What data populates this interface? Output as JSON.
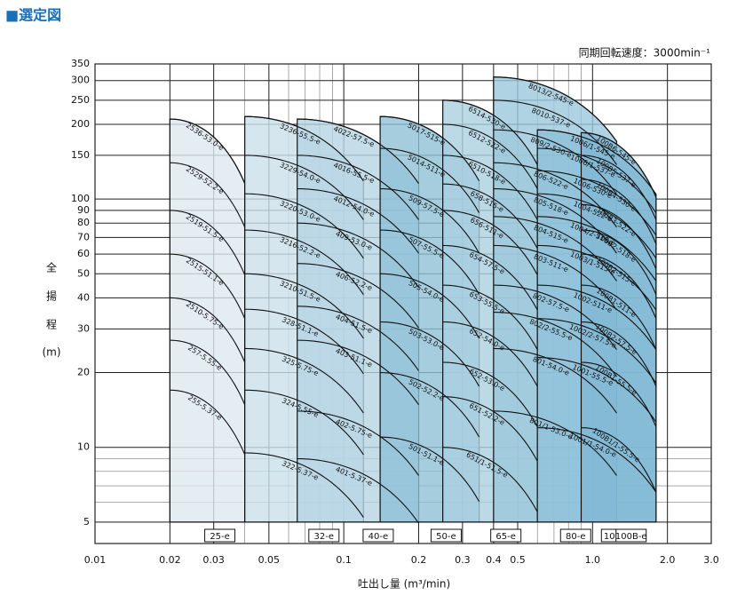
{
  "chart_data": {
    "type": "selection",
    "title": "■選定図",
    "subtitle": "同期回転速度：3000min⁻¹",
    "y_label": [
      "全",
      "揚",
      "程"
    ],
    "y_unit": "(m)",
    "x_label": "吐出し量 (m³/min)",
    "xscale": "log",
    "yscale": "log",
    "grid": true,
    "xlim": [
      0.01,
      3.0
    ],
    "ylim": [
      4.1,
      350
    ],
    "xticks": [
      0.01,
      0.02,
      0.03,
      0.05,
      0.1,
      0.2,
      0.3,
      0.4,
      0.5,
      {
        "value": 1,
        "label": "1.0"
      },
      {
        "value": 2,
        "label": "2.0"
      },
      {
        "value": 3,
        "label": "3.0"
      }
    ],
    "yticks": [
      5,
      10,
      20,
      30,
      40,
      50,
      60,
      70,
      80,
      90,
      100,
      150,
      200,
      250,
      300,
      350
    ],
    "groups": [
      {
        "name": "25-e",
        "x": [
          0.02,
          0.04
        ],
        "color": "#dde9ef",
        "models": [
          {
            "label": "2536-53.0-e",
            "head": 210
          },
          {
            "label": "2529-52.2-e",
            "head": 140
          },
          {
            "label": "2519-51.5-e",
            "head": 90
          },
          {
            "label": "2515-51.1-e",
            "head": 60
          },
          {
            "label": "2510-5.75-e",
            "head": 40
          },
          {
            "label": "257-5.55-e",
            "head": 27
          },
          {
            "label": "255-5.37-e",
            "head": 17
          }
        ]
      },
      {
        "name": "32-e",
        "x": [
          0.04,
          0.12
        ],
        "color": "#cbe0ea",
        "models": [
          {
            "label": "3236-55.5-e",
            "head": 215
          },
          {
            "label": "3229-54.0-e",
            "head": 150
          },
          {
            "label": "3220-53.0-e",
            "head": 105
          },
          {
            "label": "3216-52.2-e",
            "head": 75
          },
          {
            "label": "3210-51.5-e",
            "head": 50
          },
          {
            "label": "328-51.1-e",
            "head": 36
          },
          {
            "label": "325-5.75-e",
            "head": 25
          },
          {
            "label": "324-5.55-e",
            "head": 17
          },
          {
            "label": "322-5.37-e",
            "head": 9.5
          }
        ]
      },
      {
        "name": "40-e",
        "x": [
          0.065,
          0.2
        ],
        "color": "#b5d5e3",
        "models": [
          {
            "label": "4022-57.5-e",
            "head": 210
          },
          {
            "label": "4016-55.5-e",
            "head": 150
          },
          {
            "label": "4012-54.0-e",
            "head": 110
          },
          {
            "label": "409-53.0-e",
            "head": 80
          },
          {
            "label": "406-52.2-e",
            "head": 55
          },
          {
            "label": "404-51.5-e",
            "head": 37
          },
          {
            "label": "403-51.1-e",
            "head": 27
          },
          {
            "label": "402-5.75-e",
            "head": 14
          },
          {
            "label": "401-5.37-e",
            "head": 9
          }
        ]
      },
      {
        "name": "50-e",
        "x": [
          0.14,
          0.35
        ],
        "color": "#8fc1d6",
        "models": [
          {
            "label": "5017-515-e",
            "head": 215
          },
          {
            "label": "5014-511-e",
            "head": 160
          },
          {
            "label": "509-57.5-e",
            "head": 110
          },
          {
            "label": "507-55.5-e",
            "head": 75
          },
          {
            "label": "505-54.0-e",
            "head": 50
          },
          {
            "label": "503-53.0-e",
            "head": 32
          },
          {
            "label": "502-52.2-e",
            "head": 20
          },
          {
            "label": "501-51.1-e",
            "head": 11
          }
        ]
      },
      {
        "name": "65-e",
        "x": [
          0.25,
          0.6
        ],
        "color": "#abd0e0",
        "models": [
          {
            "label": "6514-530-e",
            "head": 250
          },
          {
            "label": "6512-522-e",
            "head": 200
          },
          {
            "label": "6510-518-e",
            "head": 150
          },
          {
            "label": "658-515-e",
            "head": 115
          },
          {
            "label": "656-511-e",
            "head": 90
          },
          {
            "label": "654-57.5-e",
            "head": 65
          },
          {
            "label": "653-55.5-e",
            "head": 45
          },
          {
            "label": "652-54.0-e",
            "head": 32
          },
          {
            "label": "652-53.0-e",
            "head": 22
          },
          {
            "label": "651-52.2-e",
            "head": 16
          },
          {
            "label": "651/1-51.5-e",
            "head": 10
          }
        ]
      },
      {
        "name": "80-e",
        "x": [
          0.4,
          1.25
        ],
        "color": "#9bc8dc",
        "models": [
          {
            "label": "8013/2-545-e",
            "head": 310
          },
          {
            "label": "8010-537-e",
            "head": 250
          },
          {
            "label": "809/2-530-e",
            "head": 190
          },
          {
            "label": "806-522-e",
            "head": 140
          },
          {
            "label": "805-518-e",
            "head": 110
          },
          {
            "label": "804-515-e",
            "head": 85
          },
          {
            "label": "803-511-e",
            "head": 65
          },
          {
            "label": "802-57.5-e",
            "head": 45
          },
          {
            "label": "802/2-55.5-e",
            "head": 35
          },
          {
            "label": "801-54.0-e",
            "head": 25
          },
          {
            "label": "801/1-53.0-e",
            "head": 14
          }
        ]
      },
      {
        "name": "100-e",
        "x": [
          0.6,
          1.8
        ],
        "color": "#8dc0d8",
        "models": [
          {
            "label": "1006/1-545-e",
            "head": 190
          },
          {
            "label": "1006/1-537-e",
            "head": 160
          },
          {
            "label": "1006-530-e",
            "head": 130
          },
          {
            "label": "1004-522-e",
            "head": 105
          },
          {
            "label": "1004/2-518-e",
            "head": 85
          },
          {
            "label": "1003/1-515-e",
            "head": 65
          },
          {
            "label": "1002-511-e",
            "head": 45
          },
          {
            "label": "1002/2-57.5-e",
            "head": 33
          },
          {
            "label": "1001-55.5-e",
            "head": 23
          },
          {
            "label": "1001/1-54.0-e",
            "head": 12
          }
        ]
      },
      {
        "name": "100B-e",
        "x": [
          0.9,
          1.8
        ],
        "color": "#80b8d3",
        "models": [
          {
            "label": "100B6-545-e",
            "head": 185
          },
          {
            "label": "100B5-537-e",
            "head": 150
          },
          {
            "label": "100B4-530-e",
            "head": 120
          },
          {
            "label": "100B3-522-e",
            "head": 95
          },
          {
            "label": "100B2-518-e",
            "head": 75
          },
          {
            "label": "100B2-515-e",
            "head": 60
          },
          {
            "label": "100B1-511-e",
            "head": 45
          },
          {
            "label": "100B2-57.5-e",
            "head": 32
          },
          {
            "label": "100B1-55.5-e",
            "head": 22
          },
          {
            "label": "100B1/1-55.5-e",
            "head": 12
          }
        ]
      }
    ]
  }
}
